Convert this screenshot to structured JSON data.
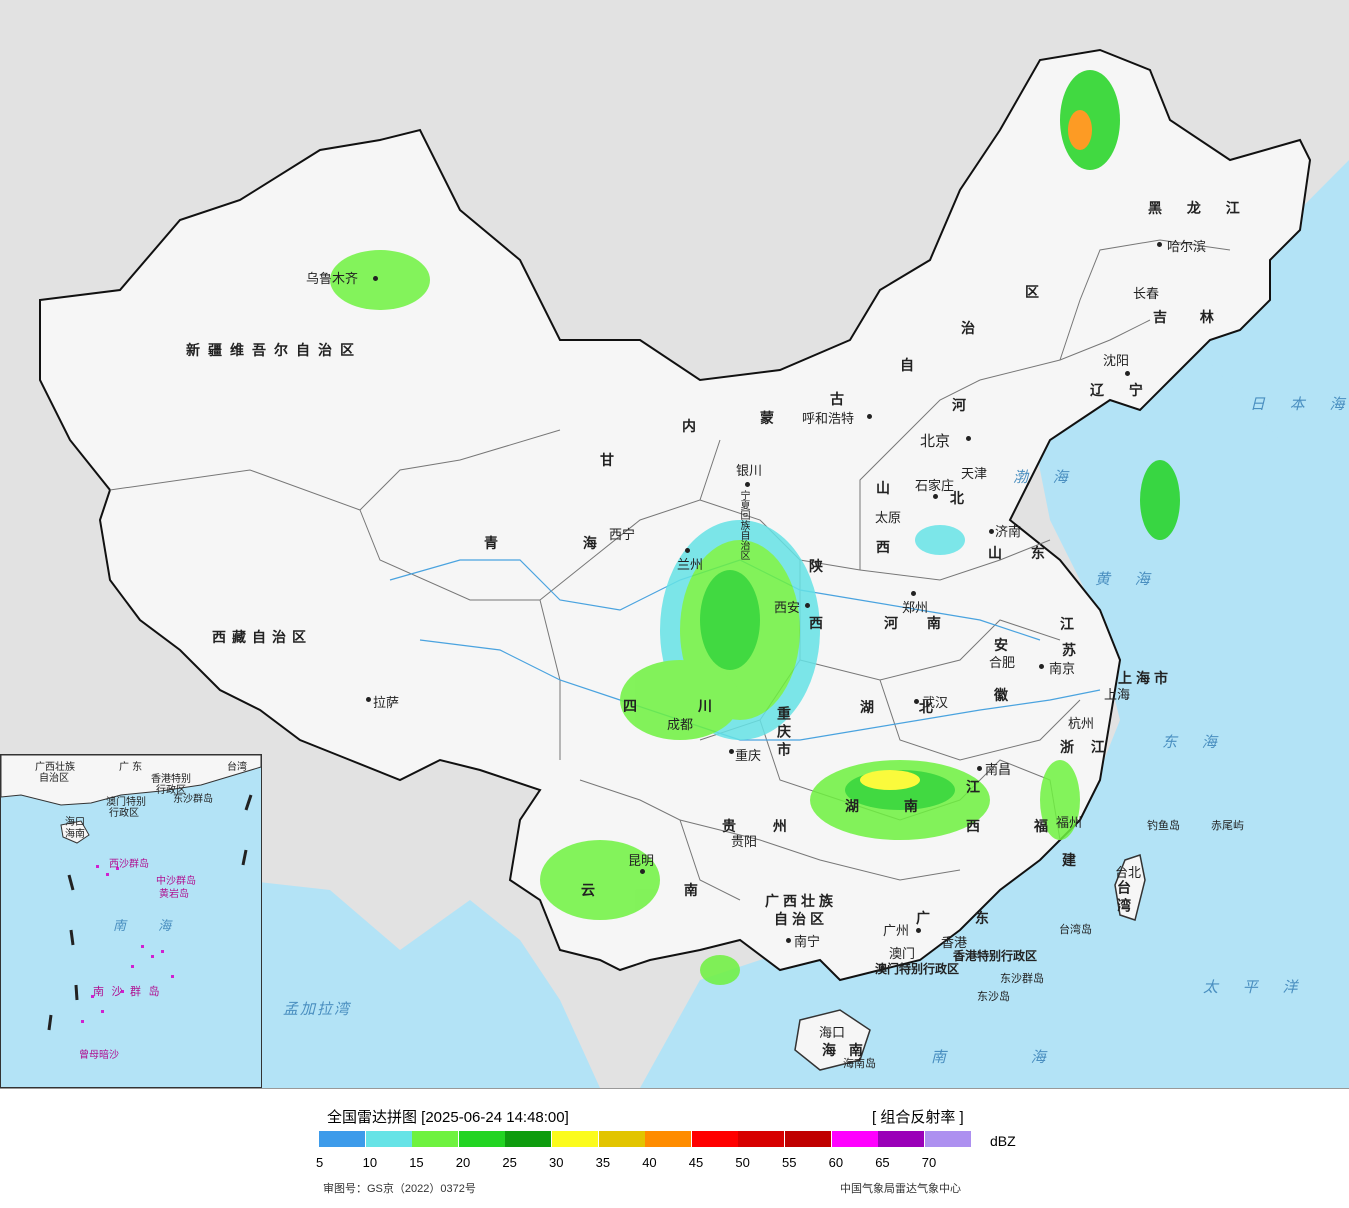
{
  "map": {
    "provinces": [
      {
        "id": "xinjiang",
        "text": "新疆维吾尔自治区"
      },
      {
        "id": "xizang",
        "text": "西藏自治区"
      },
      {
        "id": "qinghai",
        "text": "青 海"
      },
      {
        "id": "gansu",
        "text": "甘"
      },
      {
        "id": "neimenggu_1",
        "text": "内"
      },
      {
        "id": "neimenggu_2",
        "text": "蒙"
      },
      {
        "id": "neimenggu_3",
        "text": "古"
      },
      {
        "id": "neimenggu_4",
        "text": "自"
      },
      {
        "id": "neimenggu_5",
        "text": "治"
      },
      {
        "id": "neimenggu_6",
        "text": "区"
      },
      {
        "id": "heilongjiang",
        "text": "黑 龙 江"
      },
      {
        "id": "jilin",
        "text": "吉 林"
      },
      {
        "id": "liaoning",
        "text": "辽 宁"
      },
      {
        "id": "hebei_1",
        "text": "河"
      },
      {
        "id": "hebei_2",
        "text": "北"
      },
      {
        "id": "shanxi_1",
        "text": "山"
      },
      {
        "id": "shanxi_2",
        "text": "西"
      },
      {
        "id": "shandong",
        "text": "山 东"
      },
      {
        "id": "henan",
        "text": "河 南"
      },
      {
        "id": "shaanxi_1",
        "text": "陕"
      },
      {
        "id": "shaanxi_2",
        "text": "西"
      },
      {
        "id": "ningxia",
        "text": "宁夏回族自治区"
      },
      {
        "id": "sichuan_1",
        "text": "四"
      },
      {
        "id": "sichuan_2",
        "text": "川"
      },
      {
        "id": "chongqing",
        "text": "重庆市"
      },
      {
        "id": "hubei",
        "text": "湖 北"
      },
      {
        "id": "anhui_1",
        "text": "安"
      },
      {
        "id": "anhui_2",
        "text": "徽"
      },
      {
        "id": "jiangsu_1",
        "text": "江"
      },
      {
        "id": "jiangsu_2",
        "text": "苏"
      },
      {
        "id": "shanghai",
        "text": "上海市"
      },
      {
        "id": "zhejiang",
        "text": "浙 江"
      },
      {
        "id": "jiangxi_1",
        "text": "江"
      },
      {
        "id": "jiangxi_2",
        "text": "西"
      },
      {
        "id": "hunan",
        "text": "湖 南"
      },
      {
        "id": "guizhou",
        "text": "贵 州"
      },
      {
        "id": "yunnan",
        "text": "云 南"
      },
      {
        "id": "guangxi",
        "text": "广西壮族自治区"
      },
      {
        "id": "guangdong",
        "text": "广 东"
      },
      {
        "id": "fujian_1",
        "text": "福"
      },
      {
        "id": "fujian_2",
        "text": "建"
      },
      {
        "id": "taiwan",
        "text": "台湾"
      },
      {
        "id": "hainan",
        "text": "海 南"
      },
      {
        "id": "hongkong",
        "text": "香港特别行政区"
      },
      {
        "id": "macao",
        "text": "澳门特别行政区"
      }
    ],
    "cities": [
      {
        "id": "urumqi",
        "text": "乌鲁木齐"
      },
      {
        "id": "lhasa",
        "text": "拉萨"
      },
      {
        "id": "xining",
        "text": "西宁"
      },
      {
        "id": "lanzhou",
        "text": "兰州"
      },
      {
        "id": "yinchuan",
        "text": "银川"
      },
      {
        "id": "hohhot",
        "text": "呼和浩特"
      },
      {
        "id": "beijing",
        "text": "北京"
      },
      {
        "id": "tianjin",
        "text": "天津"
      },
      {
        "id": "shijiazhuang",
        "text": "石家庄"
      },
      {
        "id": "taiyuan",
        "text": "太原"
      },
      {
        "id": "jinan",
        "text": "济南"
      },
      {
        "id": "zhengzhou",
        "text": "郑州"
      },
      {
        "id": "xian",
        "text": "西安"
      },
      {
        "id": "chengdu",
        "text": "成都"
      },
      {
        "id": "chongqing_city",
        "text": "重庆"
      },
      {
        "id": "wuhan",
        "text": "武汉"
      },
      {
        "id": "hefei",
        "text": "合肥"
      },
      {
        "id": "nanjing",
        "text": "南京"
      },
      {
        "id": "shanghai_city",
        "text": "上海"
      },
      {
        "id": "hangzhou",
        "text": "杭州"
      },
      {
        "id": "nanchang",
        "text": "南昌"
      },
      {
        "id": "fuzhou",
        "text": "福州"
      },
      {
        "id": "guiyang",
        "text": "贵阳"
      },
      {
        "id": "kunming",
        "text": "昆明"
      },
      {
        "id": "nanning",
        "text": "南宁"
      },
      {
        "id": "guangzhou",
        "text": "广州"
      },
      {
        "id": "hongkong_city",
        "text": "香港"
      },
      {
        "id": "macao_city",
        "text": "澳门"
      },
      {
        "id": "haikou",
        "text": "海口"
      },
      {
        "id": "taibei",
        "text": "台北"
      },
      {
        "id": "harbin",
        "text": "哈尔滨"
      },
      {
        "id": "changchun",
        "text": "长春"
      },
      {
        "id": "shenyang",
        "text": "沈阳"
      }
    ],
    "seas": [
      {
        "id": "bohai",
        "text": "渤 海"
      },
      {
        "id": "huanghai",
        "text": "黄 海"
      },
      {
        "id": "donghai",
        "text": "东 海"
      },
      {
        "id": "nanhai",
        "text": "南 海"
      },
      {
        "id": "taipingyang",
        "text": "太 平 洋"
      },
      {
        "id": "ribenhai",
        "text": "日 本 海"
      },
      {
        "id": "mengjialawan",
        "text": "孟加拉湾"
      }
    ],
    "islands": [
      {
        "id": "diaoyudao",
        "text": "钓鱼岛"
      },
      {
        "id": "chiweiyu",
        "text": "赤尾屿"
      },
      {
        "id": "taiwandao",
        "text": "台湾岛"
      },
      {
        "id": "dongshaqundao",
        "text": "东沙群岛"
      },
      {
        "id": "dongshadao",
        "text": "东沙岛"
      },
      {
        "id": "hainandao",
        "text": "海南岛"
      }
    ],
    "inset_labels": [
      {
        "id": "in_guangxi",
        "text": "广西壮族"
      },
      {
        "id": "in_zizhiqu",
        "text": "自治区"
      },
      {
        "id": "in_guangdong",
        "text": "广 东"
      },
      {
        "id": "in_taiwan",
        "text": "台湾"
      },
      {
        "id": "in_hk",
        "text": "香港特别"
      },
      {
        "id": "in_hk2",
        "text": "行政区"
      },
      {
        "id": "in_macao",
        "text": "澳门特别"
      },
      {
        "id": "in_macao2",
        "text": "行政区"
      },
      {
        "id": "in_dongsha",
        "text": "东沙群岛"
      },
      {
        "id": "in_haikou",
        "text": "海口"
      },
      {
        "id": "in_hainan",
        "text": "海南"
      },
      {
        "id": "in_xisha",
        "text": "西沙群岛"
      },
      {
        "id": "in_zhongsha",
        "text": "中沙群岛"
      },
      {
        "id": "in_huangyan",
        "text": "黄岩岛"
      },
      {
        "id": "in_nanhai",
        "text": "南 海"
      },
      {
        "id": "in_nansha",
        "text": "南 沙 群 岛"
      },
      {
        "id": "in_zengmu",
        "text": "曾母暗沙"
      }
    ]
  },
  "legend": {
    "title": "全国雷达拼图 [2025-06-24 14:48:00]",
    "product": "[ 组合反射率 ]",
    "unit": "dBZ",
    "colors": [
      "#3d9bea",
      "#66e3e6",
      "#6ef23f",
      "#22d422",
      "#0e9c0e",
      "#fbfb1c",
      "#e2c400",
      "#ff8c00",
      "#ff0000",
      "#d70000",
      "#c00000",
      "#ff00ff",
      "#9a00b8",
      "#ad90f0"
    ],
    "ticks": [
      "5",
      "10",
      "15",
      "20",
      "25",
      "30",
      "35",
      "40",
      "45",
      "50",
      "55",
      "60",
      "65",
      "70"
    ],
    "approval": "审图号：GS京（2022）0372号",
    "center": "中国气象局雷达气象中心"
  }
}
